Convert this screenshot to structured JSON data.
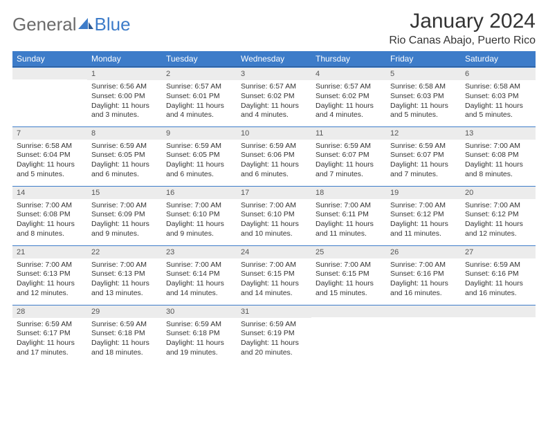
{
  "logo": {
    "part1": "General",
    "part2": "Blue"
  },
  "title": "January 2024",
  "location": "Rio Canas Abajo, Puerto Rico",
  "weekday_labels": [
    "Sunday",
    "Monday",
    "Tuesday",
    "Wednesday",
    "Thursday",
    "Friday",
    "Saturday"
  ],
  "colors": {
    "header_bg": "#3d7cc9",
    "header_text": "#ffffff",
    "daynum_bg": "#ececec",
    "cell_border": "#3d7cc9",
    "text": "#333333",
    "logo_grey": "#6b6b6b",
    "logo_blue": "#3d7cc9"
  },
  "grid": [
    [
      {
        "day": "",
        "sunrise": "",
        "sunset": "",
        "daylight": ""
      },
      {
        "day": "1",
        "sunrise": "Sunrise: 6:56 AM",
        "sunset": "Sunset: 6:00 PM",
        "daylight": "Daylight: 11 hours and 3 minutes."
      },
      {
        "day": "2",
        "sunrise": "Sunrise: 6:57 AM",
        "sunset": "Sunset: 6:01 PM",
        "daylight": "Daylight: 11 hours and 4 minutes."
      },
      {
        "day": "3",
        "sunrise": "Sunrise: 6:57 AM",
        "sunset": "Sunset: 6:02 PM",
        "daylight": "Daylight: 11 hours and 4 minutes."
      },
      {
        "day": "4",
        "sunrise": "Sunrise: 6:57 AM",
        "sunset": "Sunset: 6:02 PM",
        "daylight": "Daylight: 11 hours and 4 minutes."
      },
      {
        "day": "5",
        "sunrise": "Sunrise: 6:58 AM",
        "sunset": "Sunset: 6:03 PM",
        "daylight": "Daylight: 11 hours and 5 minutes."
      },
      {
        "day": "6",
        "sunrise": "Sunrise: 6:58 AM",
        "sunset": "Sunset: 6:03 PM",
        "daylight": "Daylight: 11 hours and 5 minutes."
      }
    ],
    [
      {
        "day": "7",
        "sunrise": "Sunrise: 6:58 AM",
        "sunset": "Sunset: 6:04 PM",
        "daylight": "Daylight: 11 hours and 5 minutes."
      },
      {
        "day": "8",
        "sunrise": "Sunrise: 6:59 AM",
        "sunset": "Sunset: 6:05 PM",
        "daylight": "Daylight: 11 hours and 6 minutes."
      },
      {
        "day": "9",
        "sunrise": "Sunrise: 6:59 AM",
        "sunset": "Sunset: 6:05 PM",
        "daylight": "Daylight: 11 hours and 6 minutes."
      },
      {
        "day": "10",
        "sunrise": "Sunrise: 6:59 AM",
        "sunset": "Sunset: 6:06 PM",
        "daylight": "Daylight: 11 hours and 6 minutes."
      },
      {
        "day": "11",
        "sunrise": "Sunrise: 6:59 AM",
        "sunset": "Sunset: 6:07 PM",
        "daylight": "Daylight: 11 hours and 7 minutes."
      },
      {
        "day": "12",
        "sunrise": "Sunrise: 6:59 AM",
        "sunset": "Sunset: 6:07 PM",
        "daylight": "Daylight: 11 hours and 7 minutes."
      },
      {
        "day": "13",
        "sunrise": "Sunrise: 7:00 AM",
        "sunset": "Sunset: 6:08 PM",
        "daylight": "Daylight: 11 hours and 8 minutes."
      }
    ],
    [
      {
        "day": "14",
        "sunrise": "Sunrise: 7:00 AM",
        "sunset": "Sunset: 6:08 PM",
        "daylight": "Daylight: 11 hours and 8 minutes."
      },
      {
        "day": "15",
        "sunrise": "Sunrise: 7:00 AM",
        "sunset": "Sunset: 6:09 PM",
        "daylight": "Daylight: 11 hours and 9 minutes."
      },
      {
        "day": "16",
        "sunrise": "Sunrise: 7:00 AM",
        "sunset": "Sunset: 6:10 PM",
        "daylight": "Daylight: 11 hours and 9 minutes."
      },
      {
        "day": "17",
        "sunrise": "Sunrise: 7:00 AM",
        "sunset": "Sunset: 6:10 PM",
        "daylight": "Daylight: 11 hours and 10 minutes."
      },
      {
        "day": "18",
        "sunrise": "Sunrise: 7:00 AM",
        "sunset": "Sunset: 6:11 PM",
        "daylight": "Daylight: 11 hours and 11 minutes."
      },
      {
        "day": "19",
        "sunrise": "Sunrise: 7:00 AM",
        "sunset": "Sunset: 6:12 PM",
        "daylight": "Daylight: 11 hours and 11 minutes."
      },
      {
        "day": "20",
        "sunrise": "Sunrise: 7:00 AM",
        "sunset": "Sunset: 6:12 PM",
        "daylight": "Daylight: 11 hours and 12 minutes."
      }
    ],
    [
      {
        "day": "21",
        "sunrise": "Sunrise: 7:00 AM",
        "sunset": "Sunset: 6:13 PM",
        "daylight": "Daylight: 11 hours and 12 minutes."
      },
      {
        "day": "22",
        "sunrise": "Sunrise: 7:00 AM",
        "sunset": "Sunset: 6:13 PM",
        "daylight": "Daylight: 11 hours and 13 minutes."
      },
      {
        "day": "23",
        "sunrise": "Sunrise: 7:00 AM",
        "sunset": "Sunset: 6:14 PM",
        "daylight": "Daylight: 11 hours and 14 minutes."
      },
      {
        "day": "24",
        "sunrise": "Sunrise: 7:00 AM",
        "sunset": "Sunset: 6:15 PM",
        "daylight": "Daylight: 11 hours and 14 minutes."
      },
      {
        "day": "25",
        "sunrise": "Sunrise: 7:00 AM",
        "sunset": "Sunset: 6:15 PM",
        "daylight": "Daylight: 11 hours and 15 minutes."
      },
      {
        "day": "26",
        "sunrise": "Sunrise: 7:00 AM",
        "sunset": "Sunset: 6:16 PM",
        "daylight": "Daylight: 11 hours and 16 minutes."
      },
      {
        "day": "27",
        "sunrise": "Sunrise: 6:59 AM",
        "sunset": "Sunset: 6:16 PM",
        "daylight": "Daylight: 11 hours and 16 minutes."
      }
    ],
    [
      {
        "day": "28",
        "sunrise": "Sunrise: 6:59 AM",
        "sunset": "Sunset: 6:17 PM",
        "daylight": "Daylight: 11 hours and 17 minutes."
      },
      {
        "day": "29",
        "sunrise": "Sunrise: 6:59 AM",
        "sunset": "Sunset: 6:18 PM",
        "daylight": "Daylight: 11 hours and 18 minutes."
      },
      {
        "day": "30",
        "sunrise": "Sunrise: 6:59 AM",
        "sunset": "Sunset: 6:18 PM",
        "daylight": "Daylight: 11 hours and 19 minutes."
      },
      {
        "day": "31",
        "sunrise": "Sunrise: 6:59 AM",
        "sunset": "Sunset: 6:19 PM",
        "daylight": "Daylight: 11 hours and 20 minutes."
      },
      {
        "day": "",
        "sunrise": "",
        "sunset": "",
        "daylight": ""
      },
      {
        "day": "",
        "sunrise": "",
        "sunset": "",
        "daylight": ""
      },
      {
        "day": "",
        "sunrise": "",
        "sunset": "",
        "daylight": ""
      }
    ]
  ]
}
